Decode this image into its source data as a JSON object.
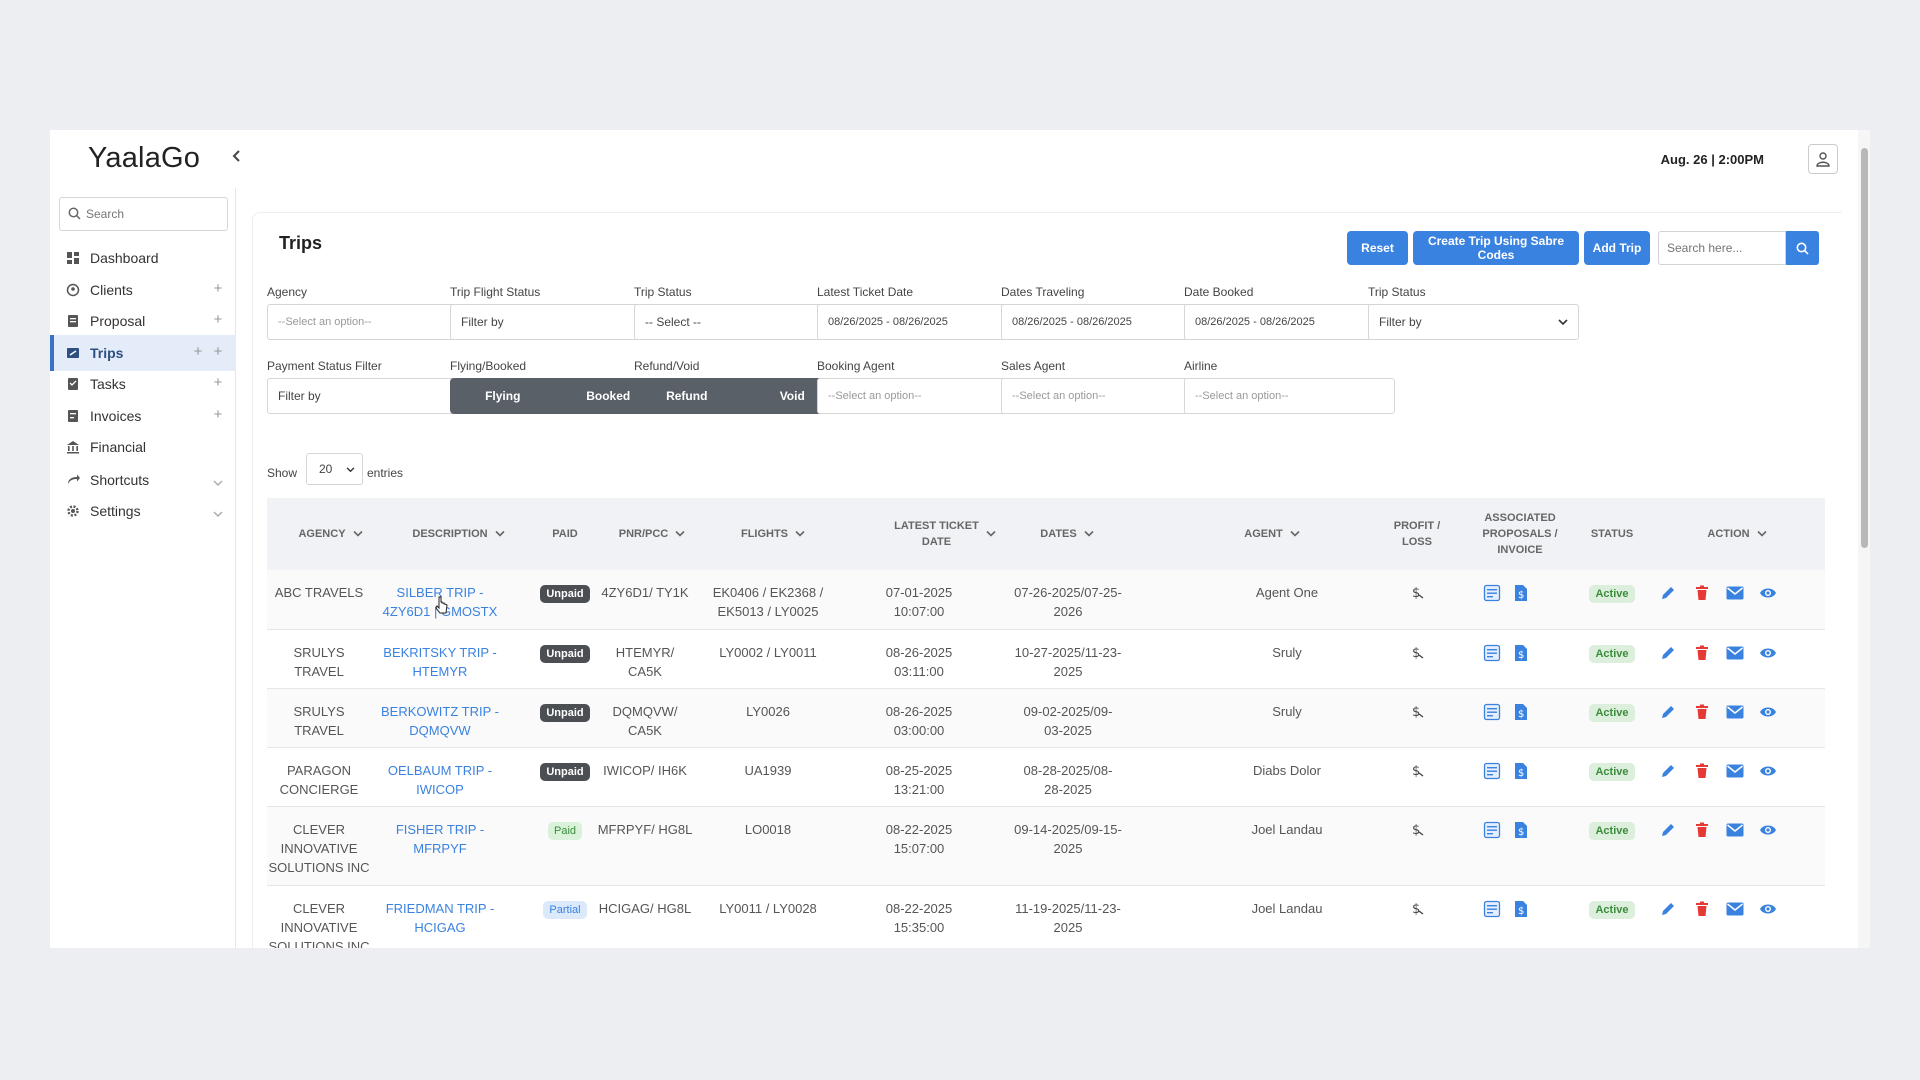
{
  "app": {
    "logo": "YaalaGo",
    "datetime": "Aug. 26 | 2:00PM"
  },
  "sidebar": {
    "search_placeholder": "Search",
    "items": [
      {
        "label": "Dashboard",
        "icon": "dashboard-icon"
      },
      {
        "label": "Clients",
        "icon": "clients-icon"
      },
      {
        "label": "Proposal",
        "icon": "proposal-icon"
      },
      {
        "label": "Trips",
        "icon": "trips-icon",
        "active": true
      },
      {
        "label": "Tasks",
        "icon": "tasks-icon"
      },
      {
        "label": "Invoices",
        "icon": "invoices-icon"
      },
      {
        "label": "Financial",
        "icon": "bank-icon"
      },
      {
        "label": "Shortcuts",
        "icon": "shortcut-icon"
      },
      {
        "label": "Settings",
        "icon": "gear-icon"
      }
    ]
  },
  "page": {
    "title": "Trips",
    "buttons": {
      "reset": "Reset",
      "sabre": "Create Trip Using Sabre Codes",
      "add": "Add Trip"
    },
    "search_placeholder": "Search here..."
  },
  "filters": {
    "agency": {
      "label": "Agency",
      "value": "--Select an option--"
    },
    "trip_flight_status": {
      "label": "Trip Flight Status",
      "value": "Filter by"
    },
    "trip_status": {
      "label": "Trip Status",
      "value": "-- Select --"
    },
    "latest_ticket_date": {
      "label": "Latest Ticket Date",
      "value": "08/26/2025 - 08/26/2025"
    },
    "dates_traveling": {
      "label": "Dates Traveling",
      "value": "08/26/2025 - 08/26/2025"
    },
    "date_booked": {
      "label": "Date Booked",
      "value": "08/26/2025 - 08/26/2025"
    },
    "trip_status_2": {
      "label": "Trip Status",
      "value": "Filter by"
    },
    "payment_status": {
      "label": "Payment Status Filter",
      "value": "Filter by"
    },
    "flying_booked": {
      "label": "Flying/Booked",
      "options": [
        "Flying",
        "Booked"
      ]
    },
    "refund_void": {
      "label": "Refund/Void",
      "options": [
        "Refund",
        "Void"
      ]
    },
    "booking_agent": {
      "label": "Booking Agent",
      "value": "--Select an option--"
    },
    "sales_agent": {
      "label": "Sales Agent",
      "value": "--Select an option--"
    },
    "airline": {
      "label": "Airline",
      "value": "--Select an option--"
    }
  },
  "entries": {
    "show": "Show",
    "value": "20",
    "suffix": "entries"
  },
  "table": {
    "headers": {
      "agency": "AGENCY",
      "description": "DESCRIPTION",
      "paid": "PAID",
      "pnr": "PNR/PCC",
      "flights": "FLIGHTS",
      "latest_ticket_1": "LATEST TICKET",
      "latest_ticket_2": "DATE",
      "dates": "DATES",
      "agent": "AGENT",
      "profit_1": "PROFIT /",
      "profit_2": "LOSS",
      "assoc_1": "ASSOCIATED",
      "assoc_2": "PROPOSALS /",
      "assoc_3": "INVOICE",
      "status": "STATUS",
      "action": "ACTION"
    },
    "rows": [
      {
        "agency": [
          "ABC TRAVELS"
        ],
        "description": [
          "SILBER TRIP -",
          "4ZY6D1 | GMOSTX"
        ],
        "paid": "Unpaid",
        "paid_type": "unpaid",
        "pnr": [
          "4ZY6D1/ TY1K"
        ],
        "flights": [
          "EK0406 / EK2368 /",
          "EK5013 / LY0025"
        ],
        "ticket": [
          "07-01-2025",
          "10:07:00"
        ],
        "dates": [
          "07-26-2025/07-25-",
          "2026"
        ],
        "agent": "Agent One",
        "status": "Active"
      },
      {
        "agency": [
          "SRULYS TRAVEL"
        ],
        "description": [
          "BEKRITSKY TRIP -",
          "HTEMYR"
        ],
        "paid": "Unpaid",
        "paid_type": "unpaid",
        "pnr": [
          "HTEMYR/ CA5K"
        ],
        "flights": [
          "LY0002 / LY0011"
        ],
        "ticket": [
          "08-26-2025",
          "03:11:00"
        ],
        "dates": [
          "10-27-2025/11-23-",
          "2025"
        ],
        "agent": "Sruly",
        "status": "Active"
      },
      {
        "agency": [
          "SRULYS TRAVEL"
        ],
        "description": [
          "BERKOWITZ TRIP -",
          "DQMQVW"
        ],
        "paid": "Unpaid",
        "paid_type": "unpaid",
        "pnr": [
          "DQMQVW/",
          "CA5K"
        ],
        "flights": [
          "LY0026"
        ],
        "ticket": [
          "08-26-2025",
          "03:00:00"
        ],
        "dates": [
          "09-02-2025/09-",
          "03-2025"
        ],
        "agent": "Sruly",
        "status": "Active"
      },
      {
        "agency": [
          "PARAGON",
          "CONCIERGE"
        ],
        "description": [
          "OELBAUM TRIP -",
          "IWICOP"
        ],
        "paid": "Unpaid",
        "paid_type": "unpaid",
        "pnr": [
          "IWICOP/ IH6K"
        ],
        "flights": [
          "UA1939"
        ],
        "ticket": [
          "08-25-2025",
          "13:21:00"
        ],
        "dates": [
          "08-28-2025/08-",
          "28-2025"
        ],
        "agent": "Diabs Dolor",
        "status": "Active"
      },
      {
        "agency": [
          "CLEVER",
          "INNOVATIVE",
          "SOLUTIONS INC"
        ],
        "description": [
          "FISHER TRIP -",
          "MFRPYF"
        ],
        "paid": "Paid",
        "paid_type": "paid",
        "pnr": [
          "MFRPYF/ HG8L"
        ],
        "flights": [
          "LO0018"
        ],
        "ticket": [
          "08-22-2025",
          "15:07:00"
        ],
        "dates": [
          "09-14-2025/09-15-",
          "2025"
        ],
        "agent": "Joel Landau",
        "status": "Active"
      },
      {
        "agency": [
          "CLEVER",
          "INNOVATIVE",
          "SOLUTIONS INC"
        ],
        "description": [
          "FRIEDMAN TRIP -",
          "HCIGAG"
        ],
        "paid": "Partial",
        "paid_type": "partial",
        "pnr": [
          "HCIGAG/ HG8L"
        ],
        "flights": [
          "LY0011 / LY0028"
        ],
        "ticket": [
          "08-22-2025",
          "15:35:00"
        ],
        "dates": [
          "11-19-2025/11-23-",
          "2025"
        ],
        "agent": "Joel Landau",
        "status": "Active"
      }
    ]
  },
  "colors": {
    "accent": "#3a82e0",
    "delete": "#e53935",
    "toggle": "#5a6068",
    "active_badge_bg": "#dcefdc"
  }
}
